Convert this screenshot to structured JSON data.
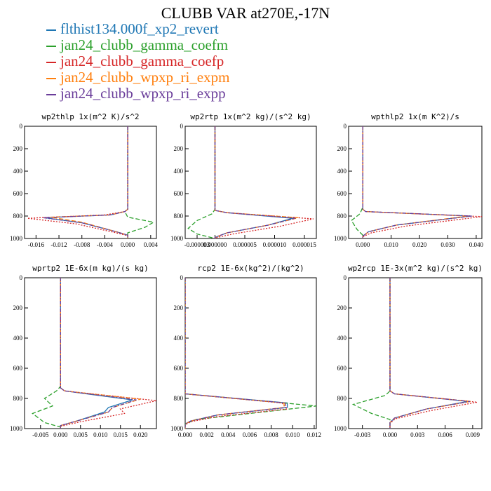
{
  "title": "CLUBB VAR at270E,-17N",
  "legend": [
    {
      "label": "flthist134.000f_xp2_revert",
      "color": "#1f77b4"
    },
    {
      "label": "jan24_clubb_gamma_coefm",
      "color": "#2ca02c"
    },
    {
      "label": "jan24_clubb_gamma_coefp",
      "color": "#d62728"
    },
    {
      "label": "jan24_clubb_wpxp_ri_expm",
      "color": "#ff7f0e"
    },
    {
      "label": "jan24_clubb_wpxp_ri_expp",
      "color": "#6a3d9a"
    }
  ],
  "chart_data": [
    {
      "type": "line",
      "title": "wp2thlp  1x(m^2 K)/s^2",
      "xlim": [
        -0.018,
        0.005
      ],
      "xticks": [
        "-0.016",
        "-0.012",
        "-0.008",
        "-0.004",
        "0.000",
        "0.004"
      ],
      "xtick_values": [
        -0.016,
        -0.012,
        -0.008,
        -0.004,
        0.0,
        0.004
      ],
      "ylim": [
        0,
        1000
      ],
      "yticks": [
        "0",
        "200",
        "400",
        "600",
        "800",
        "1000"
      ],
      "series": [
        {
          "x": [
            0.0,
            0.0,
            0.0,
            -0.0005,
            -0.003,
            -0.0145,
            -0.008,
            -0.002,
            0.0,
            0.0
          ],
          "y": [
            0,
            600,
            740,
            760,
            790,
            815,
            860,
            940,
            970,
            1000
          ]
        },
        {
          "x": [
            0.0,
            0.0,
            0.0,
            -0.0005,
            0.0,
            0.0045,
            0.003,
            0.0,
            0.0
          ],
          "y": [
            0,
            600,
            740,
            760,
            810,
            855,
            900,
            950,
            1000
          ]
        },
        {
          "x": [
            0.0,
            0.0,
            0.0,
            -0.0005,
            -0.004,
            -0.0175,
            -0.009,
            -0.002,
            0.0,
            0.0
          ],
          "y": [
            0,
            600,
            740,
            760,
            790,
            820,
            870,
            950,
            975,
            1000
          ]
        },
        {
          "x": [
            0.0,
            0.0,
            0.0,
            -0.0005,
            -0.003,
            -0.0135,
            -0.008,
            -0.002,
            0.0,
            0.0
          ],
          "y": [
            0,
            600,
            740,
            760,
            790,
            810,
            855,
            940,
            970,
            1000
          ]
        },
        {
          "x": [
            0.0,
            0.0,
            0.0,
            -0.0005,
            -0.003,
            -0.0148,
            -0.008,
            -0.002,
            0.0,
            0.0
          ],
          "y": [
            0,
            600,
            740,
            760,
            790,
            815,
            860,
            940,
            970,
            1000
          ]
        }
      ]
    },
    {
      "type": "line",
      "title": "wp2rtp  1x(m^2 kg)/(s^2 kg)",
      "xlim": [
        -5e-06,
        1.7e-05
      ],
      "xticks": [
        "-0.000003",
        "0.000000",
        "0.000005",
        "0.000010",
        "0.000015"
      ],
      "xtick_values": [
        -3e-06,
        0.0,
        5e-06,
        1e-05,
        1.5e-05
      ],
      "ylim": [
        0,
        1000
      ],
      "yticks": [
        "0",
        "200",
        "400",
        "600",
        "800",
        "1000"
      ],
      "series": [
        {
          "x": [
            0.0,
            0.0,
            0.0,
            2e-06,
            1.3e-05,
            9e-06,
            2e-06,
            0.0,
            0.0
          ],
          "y": [
            0,
            600,
            750,
            770,
            820,
            880,
            950,
            990,
            1000
          ]
        },
        {
          "x": [
            0.0,
            0.0,
            0.0,
            -5e-07,
            -3e-06,
            -4.5e-06,
            -3e-06,
            0.0,
            0.0
          ],
          "y": [
            0,
            600,
            740,
            780,
            840,
            910,
            960,
            1000,
            1000
          ]
        },
        {
          "x": [
            0.0,
            0.0,
            0.0,
            2e-06,
            1.65e-05,
            1.1e-05,
            3e-06,
            0.0,
            0.0
          ],
          "y": [
            0,
            600,
            750,
            770,
            825,
            890,
            960,
            995,
            1000
          ]
        },
        {
          "x": [
            0.0,
            0.0,
            0.0,
            2e-06,
            1.4e-05,
            9e-06,
            2e-06,
            0.0,
            0.0
          ],
          "y": [
            0,
            600,
            750,
            770,
            815,
            880,
            950,
            990,
            1000
          ]
        },
        {
          "x": [
            0.0,
            0.0,
            0.0,
            2e-06,
            1.35e-05,
            9e-06,
            2e-06,
            0.0,
            0.0
          ],
          "y": [
            0,
            600,
            750,
            770,
            820,
            880,
            950,
            990,
            1000
          ]
        }
      ]
    },
    {
      "type": "line",
      "title": "wpthlp2  1x(m K^2)/s",
      "xlim": [
        -0.005,
        0.042
      ],
      "xticks": [
        "0.000",
        "0.010",
        "0.020",
        "0.030",
        "0.040"
      ],
      "xtick_values": [
        0.0,
        0.01,
        0.02,
        0.03,
        0.04
      ],
      "ylim": [
        0,
        1000
      ],
      "yticks": [
        "0",
        "200",
        "400",
        "600",
        "800",
        "1000"
      ],
      "series": [
        {
          "x": [
            0.0,
            0.0,
            0.0,
            0.001,
            0.038,
            0.012,
            0.002,
            0.0,
            0.0
          ],
          "y": [
            0,
            600,
            740,
            760,
            800,
            880,
            940,
            980,
            1000
          ]
        },
        {
          "x": [
            0.0,
            0.0,
            0.0,
            -0.001,
            -0.004,
            -0.002,
            0.0,
            0.0
          ],
          "y": [
            0,
            600,
            720,
            780,
            840,
            920,
            970,
            1000
          ]
        },
        {
          "x": [
            0.0,
            0.0,
            0.0,
            0.001,
            0.042,
            0.015,
            0.003,
            0.0,
            0.0
          ],
          "y": [
            0,
            600,
            740,
            760,
            805,
            890,
            950,
            985,
            1000
          ]
        },
        {
          "x": [
            0.0,
            0.0,
            0.0,
            0.001,
            0.037,
            0.012,
            0.002,
            0.0,
            0.0
          ],
          "y": [
            0,
            600,
            740,
            760,
            800,
            880,
            940,
            980,
            1000
          ]
        },
        {
          "x": [
            0.0,
            0.0,
            0.0,
            0.001,
            0.0385,
            0.012,
            0.002,
            0.0,
            0.0
          ],
          "y": [
            0,
            600,
            740,
            760,
            800,
            880,
            940,
            980,
            1000
          ]
        }
      ]
    },
    {
      "type": "line",
      "title": "wprtp2  1E-6x(m kg)/(s kg)",
      "xlim": [
        -0.009,
        0.024
      ],
      "xticks": [
        "-0.005",
        "0.000",
        "0.005",
        "0.010",
        "0.015",
        "0.020"
      ],
      "xtick_values": [
        -0.005,
        0.0,
        0.005,
        0.01,
        0.015,
        0.02
      ],
      "ylim": [
        0,
        1000
      ],
      "yticks": [
        "0",
        "200",
        "400",
        "600",
        "800",
        "1000"
      ],
      "series": [
        {
          "x": [
            0.0,
            0.0,
            0.0,
            0.001,
            0.018,
            0.012,
            0.011,
            0.004,
            0.0,
            0.0
          ],
          "y": [
            0,
            600,
            730,
            750,
            810,
            860,
            890,
            950,
            980,
            1000
          ]
        },
        {
          "x": [
            0.0,
            0.0,
            0.0,
            -0.001,
            -0.004,
            -0.002,
            -0.007,
            -0.004,
            0.0,
            0.0
          ],
          "y": [
            0,
            600,
            720,
            750,
            800,
            850,
            900,
            960,
            990,
            1000
          ]
        },
        {
          "x": [
            0.0,
            0.0,
            0.0,
            0.001,
            0.024,
            0.015,
            0.016,
            0.005,
            0.0,
            0.0
          ],
          "y": [
            0,
            600,
            730,
            750,
            815,
            870,
            900,
            955,
            985,
            1000
          ]
        },
        {
          "x": [
            0.0,
            0.0,
            0.0,
            0.001,
            0.02,
            0.013,
            0.012,
            0.004,
            0.0,
            0.0
          ],
          "y": [
            0,
            600,
            730,
            750,
            805,
            860,
            890,
            950,
            980,
            1000
          ]
        },
        {
          "x": [
            0.0,
            0.0,
            0.0,
            0.001,
            0.019,
            0.013,
            0.012,
            0.004,
            0.0,
            0.0
          ],
          "y": [
            0,
            600,
            730,
            750,
            810,
            860,
            890,
            950,
            980,
            1000
          ]
        }
      ]
    },
    {
      "type": "line",
      "title": "rcp2  1E-6x(kg^2)/(kg^2)",
      "xlim": [
        0.0,
        0.0122
      ],
      "xticks": [
        "0.000",
        "0.002",
        "0.004",
        "0.006",
        "0.008",
        "0.010",
        "0.012"
      ],
      "xtick_values": [
        0.0,
        0.002,
        0.004,
        0.006,
        0.008,
        0.01,
        0.012
      ],
      "ylim": [
        0,
        1000
      ],
      "yticks": [
        "0",
        "200",
        "400",
        "600",
        "800",
        "1000"
      ],
      "series": [
        {
          "x": [
            0.0,
            0.0,
            0.0,
            0.0095,
            0.0095,
            0.003,
            0.0005,
            0.0,
            0.0
          ],
          "y": [
            0,
            600,
            770,
            830,
            860,
            910,
            950,
            970,
            1000
          ]
        },
        {
          "x": [
            0.0,
            0.0,
            0.0,
            0.0122,
            0.006,
            0.001,
            0.0,
            0.0
          ],
          "y": [
            0,
            600,
            770,
            850,
            900,
            940,
            970,
            1000
          ]
        },
        {
          "x": [
            0.0,
            0.0,
            0.0,
            0.009,
            0.0095,
            0.003,
            0.0005,
            0.0,
            0.0
          ],
          "y": [
            0,
            600,
            770,
            830,
            870,
            920,
            955,
            975,
            1000
          ]
        },
        {
          "x": [
            0.0,
            0.0,
            0.0,
            0.0092,
            0.0092,
            0.003,
            0.0005,
            0.0,
            0.0
          ],
          "y": [
            0,
            600,
            770,
            830,
            860,
            910,
            950,
            970,
            1000
          ]
        },
        {
          "x": [
            0.0,
            0.0,
            0.0,
            0.0093,
            0.0094,
            0.003,
            0.0005,
            0.0,
            0.0
          ],
          "y": [
            0,
            600,
            770,
            830,
            860,
            910,
            950,
            970,
            1000
          ]
        }
      ]
    },
    {
      "type": "line",
      "title": "wp2rcp  1E-3x(m^2 kg)/(s^2 kg)",
      "xlim": [
        -0.0045,
        0.01
      ],
      "xticks": [
        "-0.003",
        "0.000",
        "0.003",
        "0.006",
        "0.009"
      ],
      "xtick_values": [
        -0.003,
        0.0,
        0.003,
        0.006,
        0.009
      ],
      "ylim": [
        0,
        1000
      ],
      "yticks": [
        "0",
        "200",
        "400",
        "600",
        "800",
        "1000"
      ],
      "series": [
        {
          "x": [
            0.0,
            0.0,
            0.0,
            0.0005,
            0.0085,
            0.004,
            0.0005,
            0.0,
            0.0
          ],
          "y": [
            0,
            600,
            750,
            770,
            820,
            870,
            930,
            960,
            1000
          ]
        },
        {
          "x": [
            0.0,
            0.0,
            0.0,
            -0.0005,
            -0.004,
            -0.002,
            0.0,
            0.0
          ],
          "y": [
            0,
            600,
            750,
            780,
            840,
            900,
            940,
            1000
          ]
        },
        {
          "x": [
            0.0,
            0.0,
            0.0,
            0.0005,
            0.0095,
            0.0045,
            0.0006,
            0.0,
            0.0
          ],
          "y": [
            0,
            600,
            750,
            770,
            825,
            880,
            935,
            965,
            1000
          ]
        },
        {
          "x": [
            0.0,
            0.0,
            0.0,
            0.0005,
            0.0088,
            0.004,
            0.0005,
            0.0,
            0.0
          ],
          "y": [
            0,
            600,
            750,
            770,
            820,
            870,
            930,
            960,
            1000
          ]
        },
        {
          "x": [
            0.0,
            0.0,
            0.0,
            0.0005,
            0.0087,
            0.004,
            0.0005,
            0.0,
            0.0
          ],
          "y": [
            0,
            600,
            750,
            770,
            820,
            870,
            930,
            960,
            1000
          ]
        }
      ]
    }
  ]
}
